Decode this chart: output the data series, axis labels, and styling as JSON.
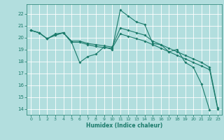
{
  "title": "",
  "xlabel": "Humidex (Indice chaleur)",
  "background_color": "#b2dede",
  "grid_color": "#ffffff",
  "line_color": "#1a7a6a",
  "xlim": [
    -0.5,
    23.5
  ],
  "ylim": [
    13.5,
    22.8
  ],
  "yticks": [
    14,
    15,
    16,
    17,
    18,
    19,
    20,
    21,
    22
  ],
  "xticks": [
    0,
    1,
    2,
    3,
    4,
    5,
    6,
    7,
    8,
    9,
    10,
    11,
    12,
    13,
    14,
    15,
    16,
    17,
    18,
    19,
    20,
    21,
    22,
    23
  ],
  "line1_x": [
    0,
    1,
    2,
    3,
    4,
    5,
    6,
    7,
    8,
    9,
    10,
    11,
    12,
    13,
    14,
    15,
    16,
    17,
    18,
    19,
    20,
    21,
    22
  ],
  "line1_y": [
    20.6,
    20.4,
    19.9,
    20.2,
    20.4,
    19.6,
    17.9,
    18.4,
    18.6,
    19.2,
    19.0,
    22.3,
    21.8,
    21.3,
    21.1,
    19.5,
    19.4,
    18.8,
    19.0,
    17.9,
    17.5,
    16.1,
    13.9
  ],
  "line2_x": [
    0,
    1,
    2,
    3,
    4,
    5,
    6,
    7,
    8,
    9,
    10,
    11,
    12,
    13,
    14,
    15,
    16,
    17,
    18,
    19,
    20,
    21,
    22,
    23
  ],
  "line2_y": [
    20.6,
    20.4,
    19.9,
    20.3,
    20.4,
    19.7,
    19.7,
    19.5,
    19.4,
    19.3,
    19.2,
    20.8,
    20.6,
    20.4,
    20.2,
    19.7,
    19.4,
    19.1,
    18.8,
    18.5,
    18.2,
    17.9,
    17.5,
    14.1
  ],
  "line3_x": [
    0,
    1,
    2,
    3,
    4,
    5,
    6,
    7,
    8,
    9,
    10,
    11,
    12,
    13,
    14,
    15,
    16,
    17,
    18,
    19,
    20,
    21,
    22,
    23
  ],
  "line3_y": [
    20.6,
    20.4,
    19.9,
    20.2,
    20.4,
    19.6,
    19.6,
    19.4,
    19.25,
    19.15,
    19.1,
    20.3,
    20.1,
    19.9,
    19.7,
    19.4,
    19.1,
    18.8,
    18.5,
    18.2,
    17.9,
    17.6,
    17.3,
    14.0
  ]
}
